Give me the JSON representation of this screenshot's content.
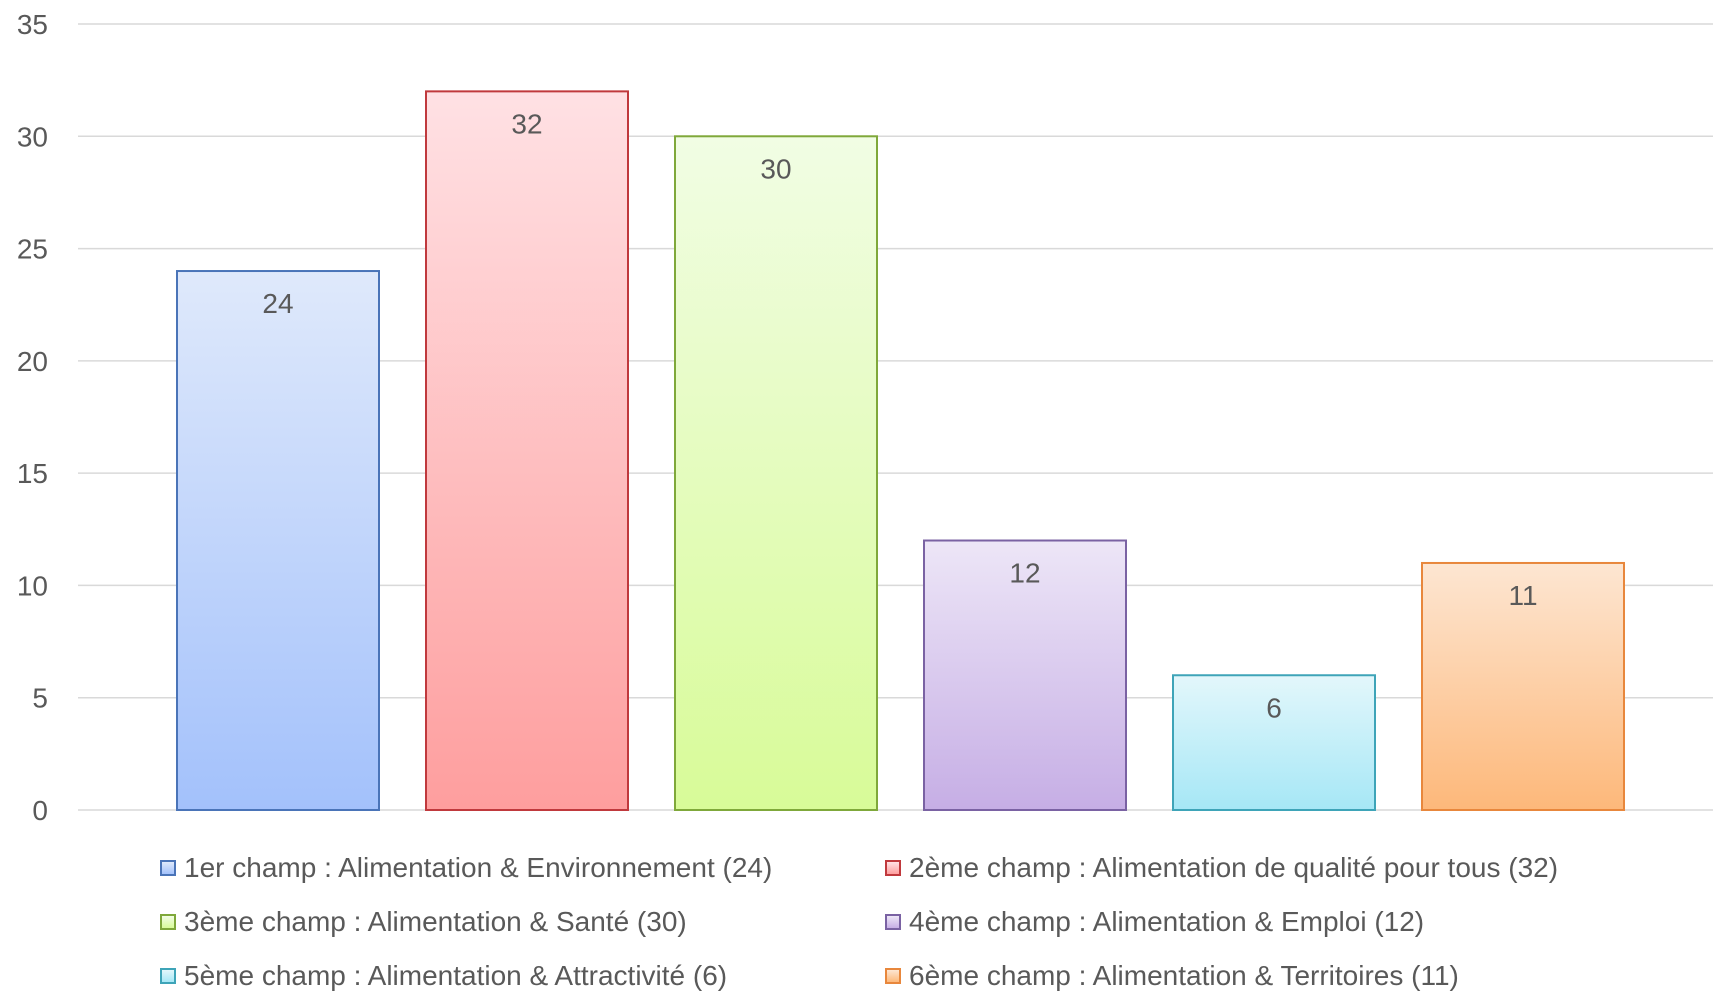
{
  "chart_data": {
    "type": "bar",
    "title": "",
    "xlabel": "",
    "ylabel": "",
    "ylim": [
      0,
      35
    ],
    "yticks": [
      0,
      5,
      10,
      15,
      20,
      25,
      30,
      35
    ],
    "grid": true,
    "legend_position": "bottom",
    "categories": [
      "1er champ : Alimentation & Environnement (24)",
      "2ème champ : Alimentation de qualité pour tous (32)",
      "3ème champ : Alimentation & Santé (30)",
      "4ème champ : Alimentation & Emploi (12)",
      "5ème champ : Alimentation & Attractivité (6)",
      "6ème champ : Alimentation & Territoires (11)"
    ],
    "values": [
      24,
      32,
      30,
      12,
      6,
      11
    ],
    "data_labels": [
      "24",
      "32",
      "30",
      "12",
      "6",
      "11"
    ],
    "colors": [
      {
        "top": "#dfe9fb",
        "bottom": "#a3c1fb",
        "stroke": "#4a74b8"
      },
      {
        "top": "#ffe1e4",
        "bottom": "#fe9e9e",
        "stroke": "#c0393d"
      },
      {
        "top": "#f1fde4",
        "bottom": "#d8fb98",
        "stroke": "#7fa83a"
      },
      {
        "top": "#ede6f7",
        "bottom": "#c6aee5",
        "stroke": "#7a62a3"
      },
      {
        "top": "#e3f7fb",
        "bottom": "#a6e7f6",
        "stroke": "#3ea4b8"
      },
      {
        "top": "#fde6d2",
        "bottom": "#fdb87a",
        "stroke": "#e8873c"
      }
    ]
  }
}
